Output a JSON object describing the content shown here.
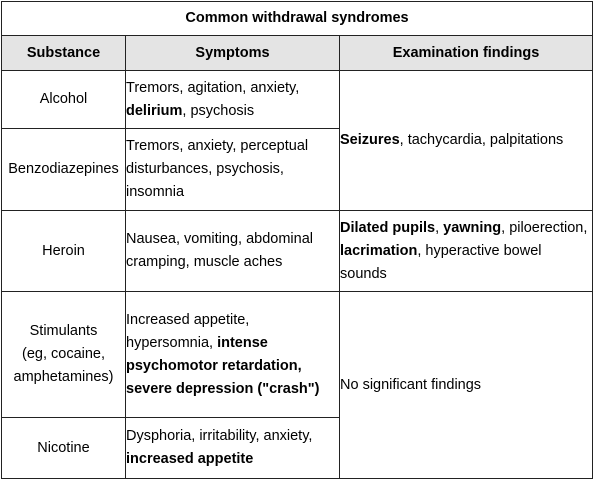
{
  "table": {
    "title": "Common withdrawal syndromes",
    "headers": {
      "substance": "Substance",
      "symptoms": "Symptoms",
      "findings": "Examination findings"
    },
    "rows": [
      {
        "substance": [
          "Alcohol"
        ],
        "symptoms": {
          "a": "Tremors, agitation, anxiety,",
          "b": "delirium",
          "c": ", psychosis"
        }
      },
      {
        "substance": [
          "Benzodiazepines"
        ],
        "symptoms": {
          "a": "Tremors, anxiety, perceptual disturbances, psychosis, insomnia"
        }
      },
      {
        "substance": [
          "Heroin"
        ],
        "symptoms": {
          "a": "Nausea, vomiting, abdominal cramping, muscle aches"
        }
      },
      {
        "substance": [
          "Stimulants",
          "(eg, cocaine,",
          "amphetamines)"
        ],
        "symptoms": {
          "a": "Increased appetite, hypersomnia,",
          "b": "intense psychomotor retardation, severe depression (\"crash\")"
        }
      },
      {
        "substance": [
          "Nicotine"
        ],
        "symptoms": {
          "a": "Dysphoria, irritability, anxiety,",
          "b": "increased appetite"
        }
      }
    ],
    "findings": {
      "alcohol_benzo": {
        "a": "Seizures",
        "b": ", tachycardia, palpitations"
      },
      "heroin": {
        "a": "Dilated pupils",
        "b": ", ",
        "c": "yawning",
        "d": ", piloerection, ",
        "e": "lacrimation",
        "f": ", hyperactive bowel sounds"
      },
      "stimulants_nicotine": {
        "a": "No significant findings"
      }
    }
  }
}
